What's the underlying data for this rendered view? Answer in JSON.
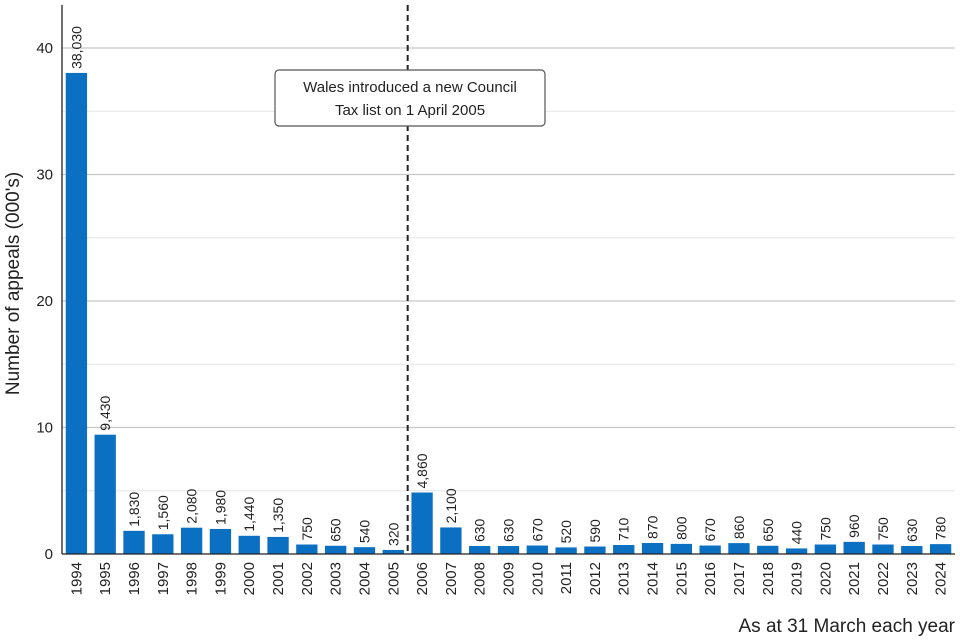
{
  "chart_data": {
    "type": "bar",
    "title": "",
    "xlabel": "As at 31 March each year",
    "ylabel": "Number of appeals (000's)",
    "ylim": [
      0,
      40
    ],
    "yticks": [
      0,
      10,
      20,
      30,
      40
    ],
    "grid": true,
    "bar_color": "#0b6fc2",
    "categories": [
      "1994",
      "1995",
      "1996",
      "1997",
      "1998",
      "1999",
      "2000",
      "2001",
      "2002",
      "2003",
      "2004",
      "2005",
      "2006",
      "2007",
      "2008",
      "2009",
      "2010",
      "2011",
      "2012",
      "2013",
      "2014",
      "2015",
      "2016",
      "2017",
      "2018",
      "2019",
      "2020",
      "2021",
      "2022",
      "2023",
      "2024"
    ],
    "values": [
      38.03,
      9.43,
      1.83,
      1.56,
      2.08,
      1.98,
      1.44,
      1.35,
      0.75,
      0.65,
      0.54,
      0.32,
      4.86,
      2.1,
      0.63,
      0.63,
      0.67,
      0.52,
      0.59,
      0.71,
      0.87,
      0.8,
      0.67,
      0.86,
      0.65,
      0.44,
      0.75,
      0.96,
      0.75,
      0.63,
      0.78
    ],
    "data_labels": [
      "38,030",
      "9,430",
      "1,830",
      "1,560",
      "2,080",
      "1,980",
      "1,440",
      "1,350",
      "750",
      "650",
      "540",
      "320",
      "4,860",
      "2,100",
      "630",
      "630",
      "670",
      "520",
      "590",
      "710",
      "870",
      "800",
      "670",
      "860",
      "650",
      "440",
      "750",
      "960",
      "750",
      "630",
      "780"
    ],
    "annotation": {
      "lines": [
        "Wales introduced a new Council",
        "Tax list on 1 April 2005"
      ],
      "reference_line_between": [
        "2005",
        "2006"
      ]
    }
  }
}
